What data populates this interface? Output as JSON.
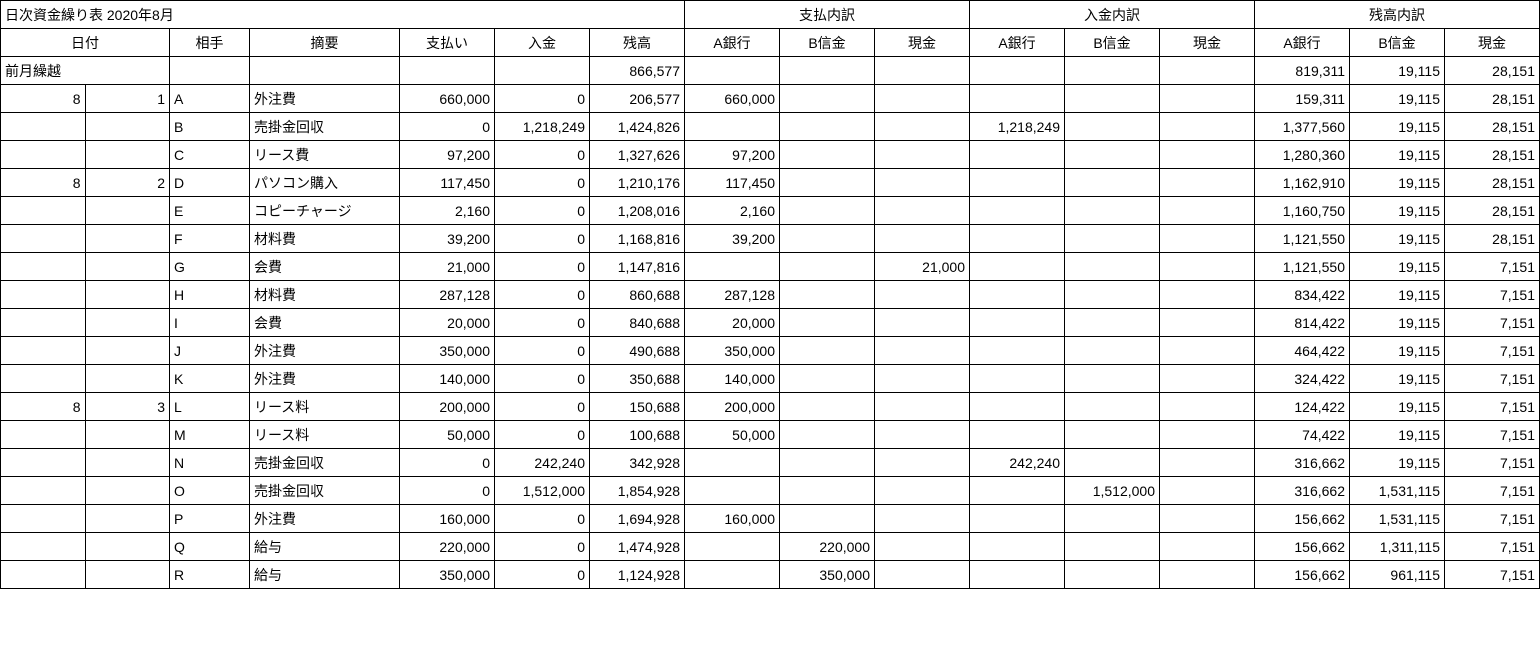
{
  "title": "日次資金繰り表  2020年8月",
  "group_headers": {
    "payment": "支払内訳",
    "deposit": "入金内訳",
    "balance": "残高内訳"
  },
  "headers": {
    "date": "日付",
    "party": "相手",
    "description": "摘要",
    "payment": "支払い",
    "deposit": "入金",
    "balance": "残高",
    "a_bank": "A銀行",
    "b_shinkin": "B信金",
    "cash": "現金"
  },
  "carryover_label": "前月繰越",
  "carryover": {
    "balance": "866,577",
    "bal_a": "819,311",
    "bal_b": "19,115",
    "bal_cash": "28,151"
  },
  "rows": [
    {
      "month": "8",
      "day": "1",
      "party": "A",
      "desc": "外注費",
      "payment": "660,000",
      "deposit": "0",
      "balance": "206,577",
      "pay_a": "660,000",
      "pay_b": "",
      "pay_cash": "",
      "dep_a": "",
      "dep_b": "",
      "dep_cash": "",
      "bal_a": "159,311",
      "bal_b": "19,115",
      "bal_cash": "28,151"
    },
    {
      "month": "",
      "day": "",
      "party": "B",
      "desc": "売掛金回収",
      "payment": "0",
      "deposit": "1,218,249",
      "balance": "1,424,826",
      "pay_a": "",
      "pay_b": "",
      "pay_cash": "",
      "dep_a": "1,218,249",
      "dep_b": "",
      "dep_cash": "",
      "bal_a": "1,377,560",
      "bal_b": "19,115",
      "bal_cash": "28,151"
    },
    {
      "month": "",
      "day": "",
      "party": "C",
      "desc": "リース費",
      "payment": "97,200",
      "deposit": "0",
      "balance": "1,327,626",
      "pay_a": "97,200",
      "pay_b": "",
      "pay_cash": "",
      "dep_a": "",
      "dep_b": "",
      "dep_cash": "",
      "bal_a": "1,280,360",
      "bal_b": "19,115",
      "bal_cash": "28,151"
    },
    {
      "month": "8",
      "day": "2",
      "party": "D",
      "desc": "パソコン購入",
      "payment": "117,450",
      "deposit": "0",
      "balance": "1,210,176",
      "pay_a": "117,450",
      "pay_b": "",
      "pay_cash": "",
      "dep_a": "",
      "dep_b": "",
      "dep_cash": "",
      "bal_a": "1,162,910",
      "bal_b": "19,115",
      "bal_cash": "28,151"
    },
    {
      "month": "",
      "day": "",
      "party": "E",
      "desc": "コピーチャージ",
      "payment": "2,160",
      "deposit": "0",
      "balance": "1,208,016",
      "pay_a": "2,160",
      "pay_b": "",
      "pay_cash": "",
      "dep_a": "",
      "dep_b": "",
      "dep_cash": "",
      "bal_a": "1,160,750",
      "bal_b": "19,115",
      "bal_cash": "28,151"
    },
    {
      "month": "",
      "day": "",
      "party": "F",
      "desc": "材料費",
      "payment": "39,200",
      "deposit": "0",
      "balance": "1,168,816",
      "pay_a": "39,200",
      "pay_b": "",
      "pay_cash": "",
      "dep_a": "",
      "dep_b": "",
      "dep_cash": "",
      "bal_a": "1,121,550",
      "bal_b": "19,115",
      "bal_cash": "28,151"
    },
    {
      "month": "",
      "day": "",
      "party": "G",
      "desc": "会費",
      "payment": "21,000",
      "deposit": "0",
      "balance": "1,147,816",
      "pay_a": "",
      "pay_b": "",
      "pay_cash": "21,000",
      "dep_a": "",
      "dep_b": "",
      "dep_cash": "",
      "bal_a": "1,121,550",
      "bal_b": "19,115",
      "bal_cash": "7,151"
    },
    {
      "month": "",
      "day": "",
      "party": "H",
      "desc": "材料費",
      "payment": "287,128",
      "deposit": "0",
      "balance": "860,688",
      "pay_a": "287,128",
      "pay_b": "",
      "pay_cash": "",
      "dep_a": "",
      "dep_b": "",
      "dep_cash": "",
      "bal_a": "834,422",
      "bal_b": "19,115",
      "bal_cash": "7,151"
    },
    {
      "month": "",
      "day": "",
      "party": "I",
      "desc": "会費",
      "payment": "20,000",
      "deposit": "0",
      "balance": "840,688",
      "pay_a": "20,000",
      "pay_b": "",
      "pay_cash": "",
      "dep_a": "",
      "dep_b": "",
      "dep_cash": "",
      "bal_a": "814,422",
      "bal_b": "19,115",
      "bal_cash": "7,151"
    },
    {
      "month": "",
      "day": "",
      "party": "J",
      "desc": "外注費",
      "payment": "350,000",
      "deposit": "0",
      "balance": "490,688",
      "pay_a": "350,000",
      "pay_b": "",
      "pay_cash": "",
      "dep_a": "",
      "dep_b": "",
      "dep_cash": "",
      "bal_a": "464,422",
      "bal_b": "19,115",
      "bal_cash": "7,151"
    },
    {
      "month": "",
      "day": "",
      "party": "K",
      "desc": "外注費",
      "payment": "140,000",
      "deposit": "0",
      "balance": "350,688",
      "pay_a": "140,000",
      "pay_b": "",
      "pay_cash": "",
      "dep_a": "",
      "dep_b": "",
      "dep_cash": "",
      "bal_a": "324,422",
      "bal_b": "19,115",
      "bal_cash": "7,151"
    },
    {
      "month": "8",
      "day": "3",
      "party": "L",
      "desc": "リース料",
      "payment": "200,000",
      "deposit": "0",
      "balance": "150,688",
      "pay_a": "200,000",
      "pay_b": "",
      "pay_cash": "",
      "dep_a": "",
      "dep_b": "",
      "dep_cash": "",
      "bal_a": "124,422",
      "bal_b": "19,115",
      "bal_cash": "7,151"
    },
    {
      "month": "",
      "day": "",
      "party": "M",
      "desc": "リース料",
      "payment": "50,000",
      "deposit": "0",
      "balance": "100,688",
      "pay_a": "50,000",
      "pay_b": "",
      "pay_cash": "",
      "dep_a": "",
      "dep_b": "",
      "dep_cash": "",
      "bal_a": "74,422",
      "bal_b": "19,115",
      "bal_cash": "7,151"
    },
    {
      "month": "",
      "day": "",
      "party": "N",
      "desc": "売掛金回収",
      "payment": "0",
      "deposit": "242,240",
      "balance": "342,928",
      "pay_a": "",
      "pay_b": "",
      "pay_cash": "",
      "dep_a": "242,240",
      "dep_b": "",
      "dep_cash": "",
      "bal_a": "316,662",
      "bal_b": "19,115",
      "bal_cash": "7,151"
    },
    {
      "month": "",
      "day": "",
      "party": "O",
      "desc": "売掛金回収",
      "payment": "0",
      "deposit": "1,512,000",
      "balance": "1,854,928",
      "pay_a": "",
      "pay_b": "",
      "pay_cash": "",
      "dep_a": "",
      "dep_b": "1,512,000",
      "dep_cash": "",
      "bal_a": "316,662",
      "bal_b": "1,531,115",
      "bal_cash": "7,151"
    },
    {
      "month": "",
      "day": "",
      "party": "P",
      "desc": "外注費",
      "payment": "160,000",
      "deposit": "0",
      "balance": "1,694,928",
      "pay_a": "160,000",
      "pay_b": "",
      "pay_cash": "",
      "dep_a": "",
      "dep_b": "",
      "dep_cash": "",
      "bal_a": "156,662",
      "bal_b": "1,531,115",
      "bal_cash": "7,151"
    },
    {
      "month": "",
      "day": "",
      "party": "Q",
      "desc": "給与",
      "payment": "220,000",
      "deposit": "0",
      "balance": "1,474,928",
      "pay_a": "",
      "pay_b": "220,000",
      "pay_cash": "",
      "dep_a": "",
      "dep_b": "",
      "dep_cash": "",
      "bal_a": "156,662",
      "bal_b": "1,311,115",
      "bal_cash": "7,151"
    },
    {
      "month": "",
      "day": "",
      "party": "R",
      "desc": "給与",
      "payment": "350,000",
      "deposit": "0",
      "balance": "1,124,928",
      "pay_a": "",
      "pay_b": "350,000",
      "pay_cash": "",
      "dep_a": "",
      "dep_b": "",
      "dep_cash": "",
      "bal_a": "156,662",
      "bal_b": "961,115",
      "bal_cash": "7,151"
    }
  ]
}
